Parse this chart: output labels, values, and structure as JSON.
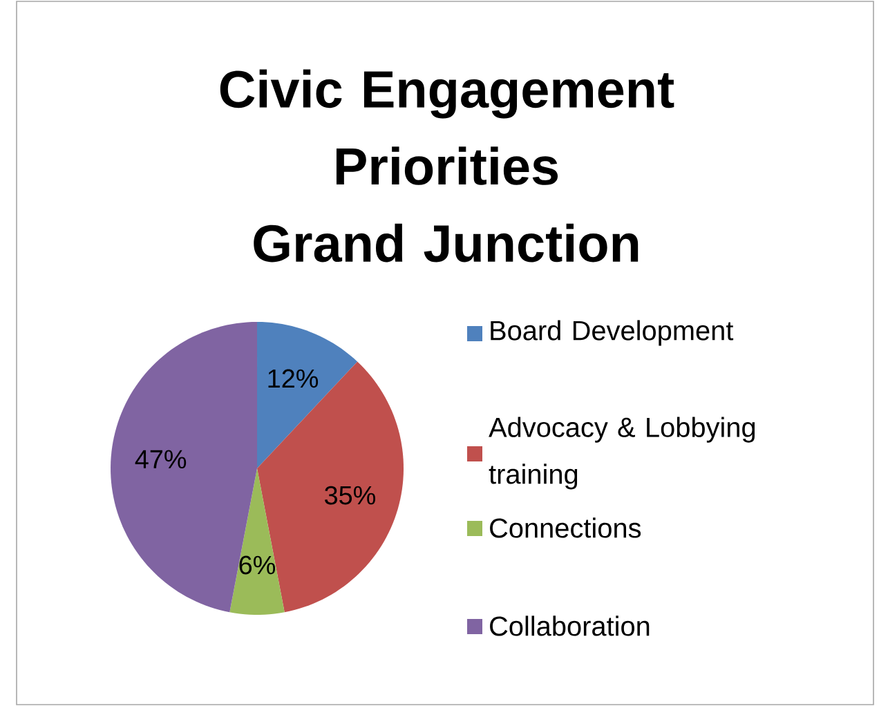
{
  "chart_data": {
    "type": "pie",
    "title": "Civic Engagement Priorities Grand Junction",
    "categories": [
      "Board Development",
      "Advocacy & Lobbying training",
      "Connections",
      "Collaboration"
    ],
    "values": [
      12,
      35,
      6,
      47
    ],
    "colors": [
      "#4f81bd",
      "#c0504d",
      "#9bbb59",
      "#8064a2"
    ],
    "value_labels": [
      "12%",
      "35%",
      "6%",
      "47%"
    ],
    "legend": "right"
  }
}
